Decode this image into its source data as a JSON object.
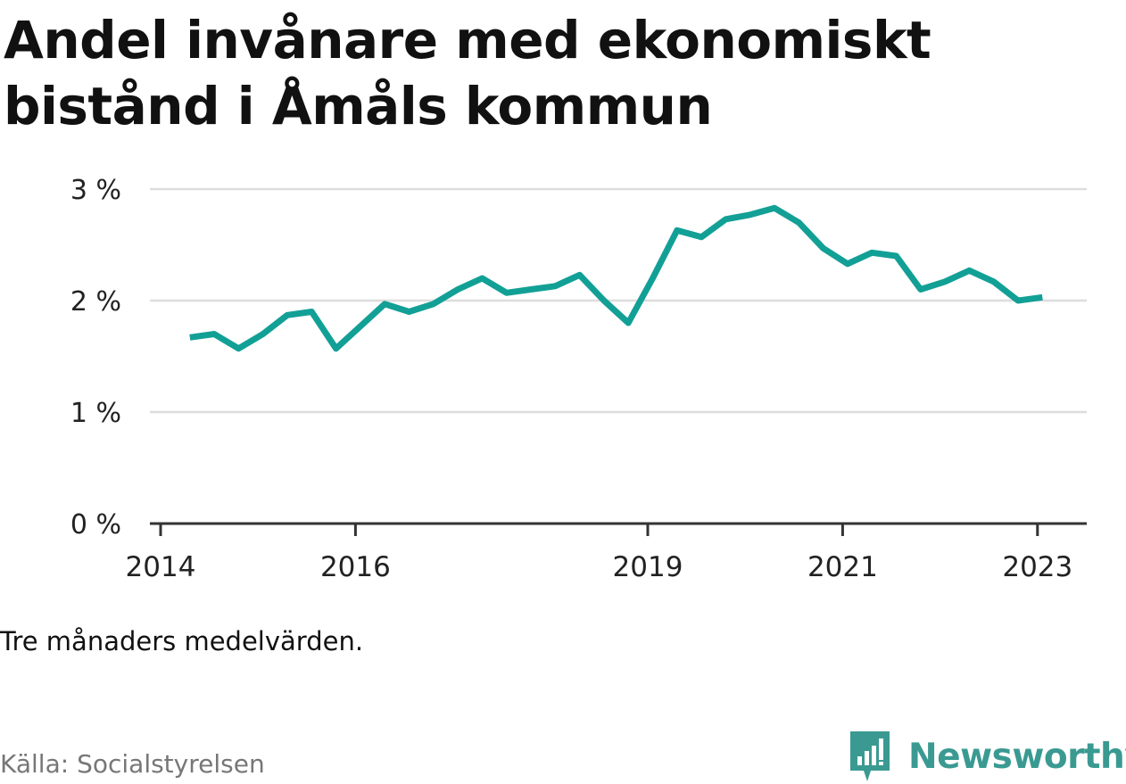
{
  "title": "Andel invånare med ekonomiskt bistånd i Åmåls kommun",
  "note": "Tre månaders medelvärden.",
  "source": "Källa: Socialstyrelsen",
  "brand": {
    "name": "Newsworthy",
    "icon": "newsworthy-chart-bubble-icon",
    "color": "#3a9a92"
  },
  "colors": {
    "line": "#12a096",
    "grid": "#dddddd",
    "axis": "#333333"
  },
  "chart_data": {
    "type": "line",
    "title": "Andel invånare med ekonomiskt bistånd i Åmåls kommun",
    "xlabel": "",
    "ylabel": "",
    "ylim": [
      0,
      3
    ],
    "xlim": [
      2014.0,
      2023.5
    ],
    "y_ticks": [
      0,
      1,
      2,
      3
    ],
    "y_tick_labels": [
      "0 %",
      "1 %",
      "2 %",
      "3 %"
    ],
    "x_ticks": [
      2014,
      2016,
      2019,
      2021,
      2023
    ],
    "x_tick_labels": [
      "2014",
      "2016",
      "2019",
      "2021",
      "2023"
    ],
    "grid": true,
    "series": [
      {
        "x": [
          2014.3,
          2014.55,
          2014.8,
          2015.05,
          2015.3,
          2015.55,
          2015.8,
          2016.05,
          2016.3,
          2016.55,
          2016.8,
          2017.05,
          2017.3,
          2017.55,
          2017.8,
          2018.05,
          2018.3,
          2018.55,
          2018.8,
          2019.05,
          2019.3,
          2019.55,
          2019.8,
          2020.05,
          2020.3,
          2020.55,
          2020.8,
          2021.05,
          2021.3,
          2021.55,
          2021.8,
          2022.05,
          2022.3,
          2022.55,
          2022.8,
          2023.05
        ],
        "values": [
          1.67,
          1.7,
          1.57,
          1.7,
          1.87,
          1.9,
          1.57,
          1.77,
          1.97,
          1.9,
          1.97,
          2.1,
          2.2,
          2.07,
          2.1,
          2.13,
          2.23,
          2.0,
          1.8,
          2.2,
          2.63,
          2.57,
          2.73,
          2.77,
          2.83,
          2.7,
          2.47,
          2.33,
          2.43,
          2.4,
          2.1,
          2.17,
          2.27,
          2.17,
          2.0,
          2.03
        ]
      }
    ]
  }
}
